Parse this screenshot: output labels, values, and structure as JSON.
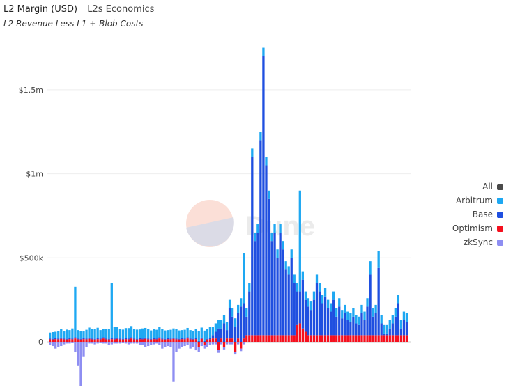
{
  "header": {
    "title": "L2 Margin (USD)",
    "source": "L2s Economics",
    "subtitle": "L2 Revenue Less L1 + Blob Costs"
  },
  "watermark": "Dune",
  "chart_data": {
    "type": "bar",
    "stacked": true,
    "title": "L2 Margin (USD)",
    "subtitle": "L2 Revenue Less L1 + Blob Costs",
    "units": "thousands USD",
    "ylim": [
      -280,
      1800
    ],
    "yticks": [
      {
        "value": 0,
        "label": "0"
      },
      {
        "value": 500,
        "label": "$500k"
      },
      {
        "value": 1000,
        "label": "$1m"
      },
      {
        "value": 1500,
        "label": "$1.5m"
      }
    ],
    "legend_position": "right",
    "grid": true,
    "legend": [
      {
        "name": "All",
        "color": "#4a4a4a"
      },
      {
        "name": "Arbitrum",
        "color": "#1ea8f2"
      },
      {
        "name": "Base",
        "color": "#1f4fe0"
      },
      {
        "name": "Optimism",
        "color": "#f5101e"
      },
      {
        "name": "zkSync",
        "color": "#8e8ef2"
      }
    ],
    "series": [
      {
        "name": "Optimism",
        "values": [
          15,
          14,
          16,
          15,
          18,
          15,
          14,
          16,
          15,
          20,
          15,
          14,
          16,
          15,
          18,
          15,
          14,
          16,
          15,
          20,
          15,
          14,
          16,
          15,
          18,
          15,
          14,
          16,
          15,
          20,
          15,
          14,
          16,
          15,
          18,
          15,
          14,
          16,
          15,
          20,
          15,
          14,
          16,
          15,
          18,
          15,
          14,
          16,
          15,
          20,
          15,
          14,
          16,
          -30,
          18,
          -20,
          14,
          16,
          20,
          20,
          -50,
          20,
          -30,
          20,
          20,
          20,
          -60,
          20,
          -40,
          20,
          40,
          40,
          40,
          40,
          40,
          40,
          40,
          40,
          40,
          40,
          40,
          40,
          40,
          40,
          40,
          40,
          40,
          40,
          100,
          110,
          80,
          60,
          40,
          40,
          40,
          40,
          40,
          40,
          40,
          40,
          40,
          40,
          40,
          40,
          40,
          40,
          40,
          40,
          40,
          40,
          40,
          40,
          40,
          40,
          40,
          40,
          40,
          40,
          40,
          40,
          40,
          40,
          40,
          40,
          40,
          40,
          40,
          40
        ]
      },
      {
        "name": "Base",
        "values": [
          5,
          4,
          6,
          5,
          7,
          5,
          4,
          6,
          5,
          8,
          5,
          4,
          6,
          5,
          7,
          5,
          4,
          6,
          5,
          8,
          5,
          4,
          6,
          5,
          7,
          5,
          4,
          6,
          5,
          8,
          5,
          4,
          6,
          5,
          7,
          5,
          4,
          6,
          5,
          8,
          5,
          4,
          6,
          5,
          7,
          5,
          4,
          6,
          5,
          8,
          5,
          4,
          6,
          5,
          7,
          5,
          4,
          6,
          20,
          40,
          80,
          60,
          110,
          50,
          180,
          130,
          90,
          150,
          210,
          210,
          110,
          260,
          1060,
          560,
          610,
          1160,
          1660,
          1010,
          810,
          560,
          610,
          460,
          610,
          510,
          390,
          360,
          460,
          310,
          200,
          190,
          290,
          190,
          170,
          150,
          210,
          310,
          260,
          190,
          230,
          160,
          140,
          210,
          110,
          170,
          100,
          130,
          90,
          80,
          110,
          70,
          60,
          130,
          90,
          170,
          360,
          110,
          130,
          400,
          70,
          10,
          10,
          40,
          70,
          110,
          190,
          40,
          90,
          80
        ]
      },
      {
        "name": "Arbitrum",
        "values": [
          35,
          40,
          38,
          45,
          50,
          42,
          55,
          48,
          60,
          300,
          50,
          45,
          40,
          52,
          60,
          55,
          58,
          62,
          50,
          48,
          55,
          60,
          330,
          70,
          65,
          58,
          55,
          60,
          62,
          66,
          58,
          55,
          52,
          60,
          58,
          56,
          50,
          54,
          52,
          60,
          55,
          50,
          48,
          52,
          55,
          58,
          50,
          48,
          52,
          55,
          50,
          48,
          55,
          58,
          60,
          62,
          58,
          65,
          50,
          50,
          50,
          50,
          50,
          50,
          50,
          50,
          50,
          50,
          50,
          300,
          50,
          50,
          50,
          50,
          50,
          50,
          50,
          50,
          50,
          50,
          50,
          50,
          50,
          50,
          50,
          50,
          50,
          50,
          50,
          600,
          50,
          50,
          50,
          50,
          50,
          50,
          50,
          50,
          50,
          50,
          50,
          50,
          50,
          50,
          50,
          50,
          50,
          50,
          50,
          50,
          50,
          50,
          50,
          50,
          80,
          50,
          50,
          100,
          50,
          50,
          50,
          50,
          50,
          50,
          50,
          50,
          50,
          50
        ]
      },
      {
        "name": "zkSync",
        "values": [
          -20,
          -25,
          -40,
          -30,
          -25,
          -15,
          -10,
          -10,
          -5,
          -60,
          -140,
          -265,
          -90,
          -30,
          -10,
          -10,
          -15,
          -10,
          -5,
          -10,
          -10,
          -20,
          -15,
          -10,
          -10,
          -10,
          -5,
          -10,
          -15,
          -10,
          -10,
          -10,
          -20,
          -20,
          -30,
          -25,
          -20,
          -15,
          -10,
          -20,
          -40,
          -30,
          -25,
          -30,
          -235,
          -60,
          -40,
          -30,
          -25,
          -20,
          -40,
          -30,
          -50,
          -30,
          -25,
          -20,
          -30,
          -20,
          -15,
          -15,
          -15,
          -15,
          -15,
          -15,
          -15,
          -15,
          -15,
          -15,
          -15,
          -15,
          0,
          0,
          0,
          0,
          0,
          0,
          0,
          0,
          0,
          0,
          0,
          0,
          0,
          0,
          0,
          0,
          0,
          0,
          0,
          0,
          0,
          0,
          0,
          0,
          0,
          0,
          0,
          0,
          0,
          0,
          0,
          0,
          0,
          0,
          0,
          0,
          0,
          0,
          0,
          0,
          0,
          0,
          0,
          0,
          0,
          0,
          0,
          0,
          0,
          0,
          0,
          0,
          0,
          0,
          0,
          0,
          0,
          0,
          0,
          0,
          0,
          0
        ]
      }
    ]
  }
}
